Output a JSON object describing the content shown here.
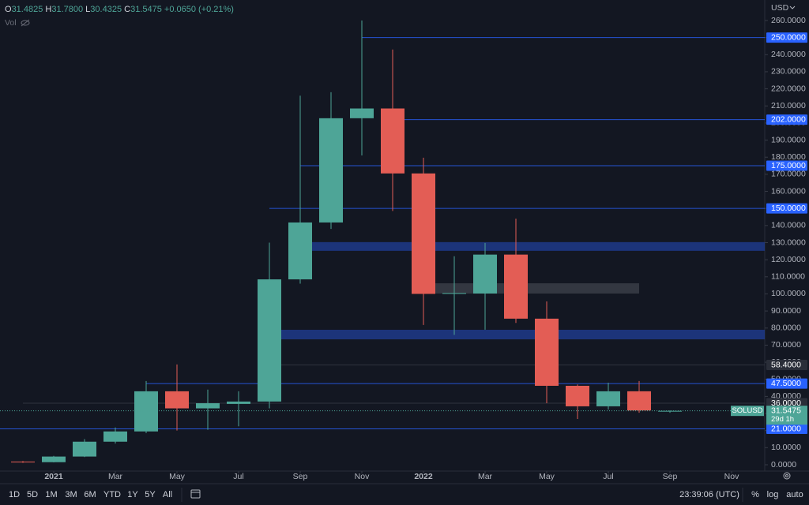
{
  "chart_data": {
    "type": "candlestick",
    "symbol": "SOLUSD",
    "currency": "USD",
    "volume_label": "Vol",
    "countdown": "29d 1h",
    "ohlc_header": {
      "o_label": "O",
      "o": "31.4825",
      "h_label": "H",
      "h": "31.7800",
      "l_label": "L",
      "l": "30.4325",
      "c_label": "C",
      "c": "31.5475",
      "change": "+0.0650 (+0.21%)"
    },
    "up_color": "#4ea597",
    "down_color": "#e35d55",
    "x": [
      "2020-12",
      "2021-01",
      "2021-02",
      "2021-03",
      "2021-04",
      "2021-05",
      "2021-06",
      "2021-07",
      "2021-08",
      "2021-09",
      "2021-10",
      "2021-11",
      "2021-12",
      "2022-01",
      "2022-02",
      "2022-03",
      "2022-04",
      "2022-05",
      "2022-06",
      "2022-07",
      "2022-08",
      "2022-09"
    ],
    "open": [
      1.84,
      1.5,
      4.8,
      13.5,
      19.5,
      43,
      33,
      35.6,
      37,
      108.5,
      141.8,
      202.8,
      208.5,
      170.5,
      100,
      100.2,
      123,
      85.5,
      46.2,
      34.2,
      43,
      31.4825
    ],
    "high": [
      2.2,
      5.2,
      15,
      21.8,
      49,
      58.7,
      44,
      43,
      130,
      216,
      218,
      260,
      243,
      179.7,
      122,
      129.8,
      144,
      95.6,
      47,
      48,
      49,
      31.78
    ],
    "low": [
      1.1,
      1.4,
      4.5,
      12.4,
      18.5,
      20,
      20.5,
      22.5,
      33,
      106,
      138,
      181,
      148.5,
      81.8,
      76,
      79,
      83,
      36,
      26.8,
      32.3,
      30.4,
      30.4325
    ],
    "close": [
      1.51,
      4.8,
      13.5,
      19.5,
      43,
      33,
      36,
      37,
      108.5,
      141.8,
      202.8,
      208.5,
      170.5,
      100,
      100.5,
      123,
      85.5,
      46.2,
      34.2,
      43,
      31.8,
      31.5475
    ],
    "ylim": [
      -3.7,
      272
    ],
    "yticks": [
      {
        "value": 0,
        "label": "0.0000"
      },
      {
        "value": 10,
        "label": "10.0000"
      },
      {
        "value": 20,
        "label": "20.0000"
      },
      {
        "value": 30,
        "label": "30.0000"
      },
      {
        "value": 40,
        "label": "40.0000"
      },
      {
        "value": 50,
        "label": "50.0000"
      },
      {
        "value": 60,
        "label": "60.0000"
      },
      {
        "value": 70,
        "label": "70.0000"
      },
      {
        "value": 80,
        "label": "80.0000"
      },
      {
        "value": 90,
        "label": "90.0000"
      },
      {
        "value": 100,
        "label": "100.0000"
      },
      {
        "value": 110,
        "label": "110.0000"
      },
      {
        "value": 120,
        "label": "120.0000"
      },
      {
        "value": 130,
        "label": "130.0000"
      },
      {
        "value": 140,
        "label": "140.0000"
      },
      {
        "value": 150,
        "label": "150.0000"
      },
      {
        "value": 160,
        "label": "160.0000"
      },
      {
        "value": 170,
        "label": "170.0000"
      },
      {
        "value": 180,
        "label": "180.0000"
      },
      {
        "value": 190,
        "label": "190.0000"
      },
      {
        "value": 200,
        "label": "200.0000"
      },
      {
        "value": 210,
        "label": "210.0000"
      },
      {
        "value": 220,
        "label": "220.0000"
      },
      {
        "value": 230,
        "label": "230.0000"
      },
      {
        "value": 240,
        "label": "240.0000"
      },
      {
        "value": 250,
        "label": "250.0000"
      },
      {
        "value": 260,
        "label": "260.0000"
      }
    ],
    "xticks": [
      {
        "value": "2021-01",
        "label": "2021"
      },
      {
        "value": "2021-03",
        "label": "Mar"
      },
      {
        "value": "2021-05",
        "label": "May"
      },
      {
        "value": "2021-07",
        "label": "Jul"
      },
      {
        "value": "2021-09",
        "label": "Sep"
      },
      {
        "value": "2021-11",
        "label": "Nov"
      },
      {
        "value": "2022-01",
        "label": "2022"
      },
      {
        "value": "2022-03",
        "label": "Mar"
      },
      {
        "value": "2022-05",
        "label": "May"
      },
      {
        "value": "2022-07",
        "label": "Jul"
      },
      {
        "value": "2022-09",
        "label": "Sep"
      },
      {
        "value": "2022-11",
        "label": "Nov"
      }
    ],
    "levels": [
      {
        "value": 250,
        "label": "250.0000",
        "from": "2021-11",
        "color": "#2962ff"
      },
      {
        "value": 202,
        "label": "202.0000",
        "from": "2021-12",
        "color": "#2962ff"
      },
      {
        "value": 175,
        "label": "175.0000",
        "from": "2021-09",
        "color": "#2962ff"
      },
      {
        "value": 150,
        "label": "150.0000",
        "from": "2021-08",
        "color": "#2962ff"
      },
      {
        "value": 58.4,
        "label": "58.4000",
        "from": "2021-08",
        "color": "#363a45"
      },
      {
        "value": 47.5,
        "label": "47.5000",
        "from": "2021-04",
        "color": "#2962ff"
      },
      {
        "value": 36,
        "label": "36.0000",
        "from": "2020-12",
        "color": "#363a45"
      },
      {
        "value": 21,
        "label": "21.0000",
        "from": "2020-11",
        "color": "#2962ff"
      }
    ],
    "zones": [
      {
        "low": 125.2,
        "high": 130.3,
        "from": "2021-09",
        "color": "#1e3a8a"
      },
      {
        "low": 73.4,
        "high": 79,
        "from": "2021-08",
        "color": "#1e3a8a"
      },
      {
        "low": 100.2,
        "high": 106.2,
        "from": "2022-01",
        "to": "2022-08",
        "color": "#3a3d46"
      }
    ],
    "toolbar": {
      "ranges": [
        "1D",
        "5D",
        "1M",
        "3M",
        "6M",
        "YTD",
        "1Y",
        "5Y",
        "All"
      ],
      "clock": "23:39:06 (UTC)",
      "percent": "%",
      "log": "log",
      "auto": "auto"
    }
  }
}
